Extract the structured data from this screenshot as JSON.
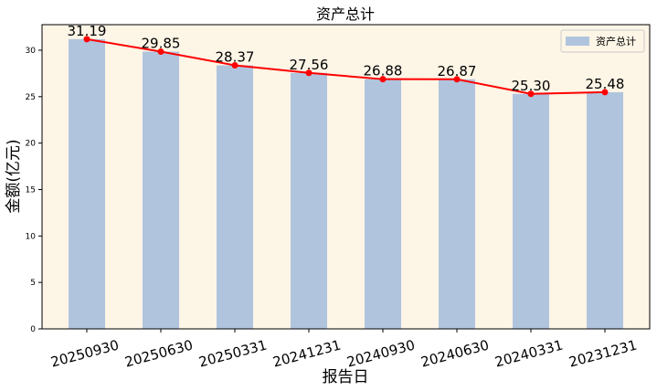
{
  "chart_data": {
    "type": "bar",
    "title": "资产总计",
    "xlabel": "报告日",
    "ylabel": "金额(亿元)",
    "categories": [
      "20250930",
      "20250630",
      "20250331",
      "20241231",
      "20240930",
      "20240630",
      "20240331",
      "20231231"
    ],
    "series": [
      {
        "name": "资产总计",
        "values": [
          31.19,
          29.85,
          28.37,
          27.56,
          26.88,
          26.87,
          25.3,
          25.48
        ],
        "data_labels": [
          "31.19",
          "29.85",
          "28.37",
          "27.56",
          "26.88",
          "26.87",
          "25.30",
          "25.48"
        ]
      }
    ],
    "overlay_line": {
      "color": "#ff0000",
      "marker": "circle"
    },
    "yticks": [
      0,
      5,
      10,
      15,
      20,
      25,
      30
    ],
    "ytick_labels": [
      "0",
      "5",
      "10",
      "15",
      "20",
      "25",
      "30"
    ],
    "ylim": [
      0,
      32.75
    ],
    "legend": "top-right",
    "grid": false,
    "colors": {
      "bar": "#b0c4de",
      "line": "#ff0000",
      "plot_background": "#fdf5e6",
      "axes": "#000000"
    }
  }
}
